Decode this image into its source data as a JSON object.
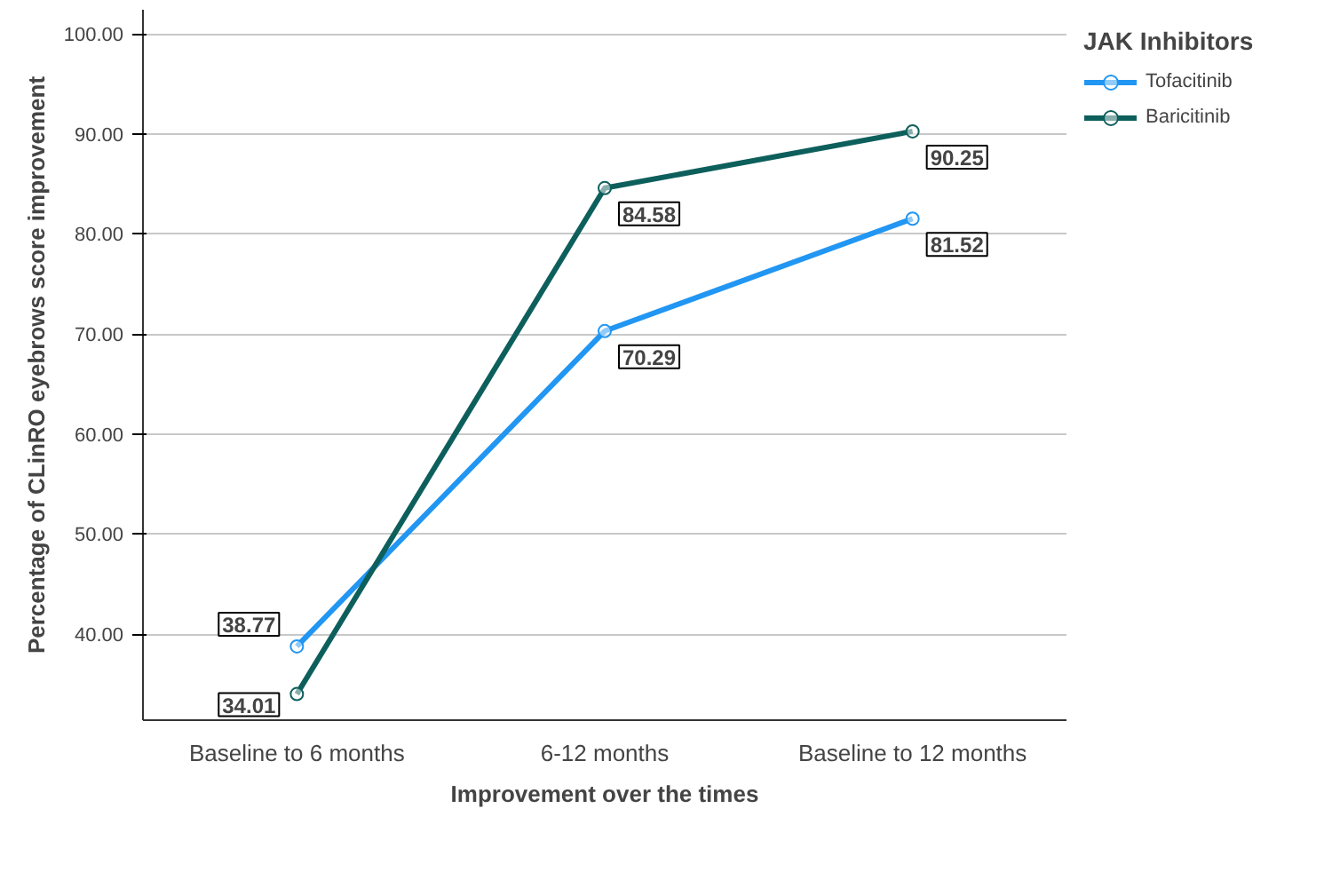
{
  "chart_data": {
    "type": "line",
    "xlabel": "Improvement over the times",
    "ylabel": "Percentage of CLinRO eyebrows score improvement",
    "legend_title": "JAK Inhibitors",
    "categories": [
      "Baseline to 6 months",
      "6-12 months",
      "Baseline to 12 months"
    ],
    "series": [
      {
        "name": "Tofacitinib",
        "color": "#2196f3",
        "values": [
          38.77,
          70.29,
          81.52
        ]
      },
      {
        "name": "Baricitinib",
        "color": "#0d5f5c",
        "values": [
          34.01,
          84.58,
          90.25
        ]
      }
    ],
    "ylim": [
      31.4,
      102.4
    ],
    "yticks": [
      {
        "value": 40,
        "label": "40.00"
      },
      {
        "value": 50,
        "label": "50.00"
      },
      {
        "value": 60,
        "label": "60.00"
      },
      {
        "value": 70,
        "label": "70.00"
      },
      {
        "value": 80,
        "label": "80.00"
      },
      {
        "value": 90,
        "label": "90.00"
      },
      {
        "value": 100,
        "label": "100.00"
      }
    ],
    "grid": "y",
    "legend": "top right",
    "marker": "circle",
    "line_style": "solid",
    "data_labels": true
  }
}
